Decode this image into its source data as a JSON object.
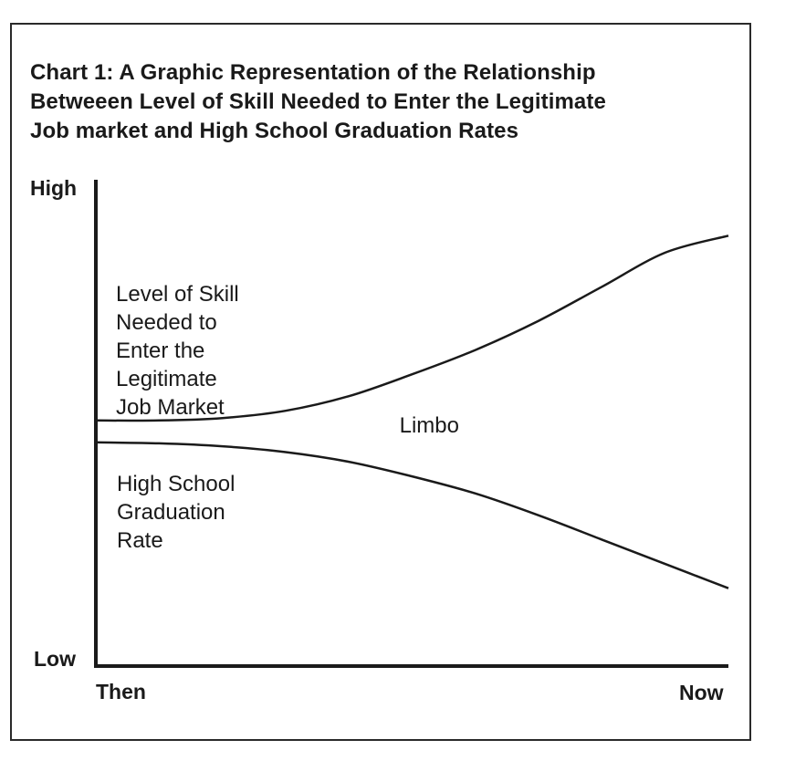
{
  "chart_data": {
    "type": "line",
    "title": [
      "Chart 1:  A Graphic Representation of the Relationship",
      "Betweeen Level of Skill Needed to Enter the Legitimate",
      "Job market and High School Graduation Rates"
    ],
    "y_tick_labels": {
      "top": "High",
      "bottom": "Low"
    },
    "x_tick_labels": {
      "left": "Then",
      "right": "Now"
    },
    "xlim": [
      0,
      1
    ],
    "ylim": [
      0,
      1
    ],
    "series": [
      {
        "name": [
          "Level of Skill",
          "Needed to",
          "Enter the",
          "Legitimate",
          "Job Market"
        ],
        "color": "#1a1a1a",
        "x": [
          0,
          0.1,
          0.2,
          0.3,
          0.4,
          0.5,
          0.6,
          0.7,
          0.8,
          0.9,
          1.0
        ],
        "y": [
          0.505,
          0.505,
          0.51,
          0.525,
          0.555,
          0.6,
          0.65,
          0.71,
          0.78,
          0.85,
          0.885
        ]
      },
      {
        "name": [
          "High School",
          "Graduation",
          "Rate"
        ],
        "color": "#1a1a1a",
        "x": [
          0,
          0.1,
          0.2,
          0.3,
          0.4,
          0.5,
          0.6,
          0.7,
          0.8,
          0.9,
          1.0
        ],
        "y": [
          0.46,
          0.458,
          0.452,
          0.44,
          0.42,
          0.39,
          0.355,
          0.31,
          0.26,
          0.21,
          0.16
        ]
      }
    ],
    "annotations": [
      {
        "text": "Limbo",
        "x": 0.48,
        "y": 0.48
      }
    ],
    "grid": false,
    "legend": "none"
  }
}
